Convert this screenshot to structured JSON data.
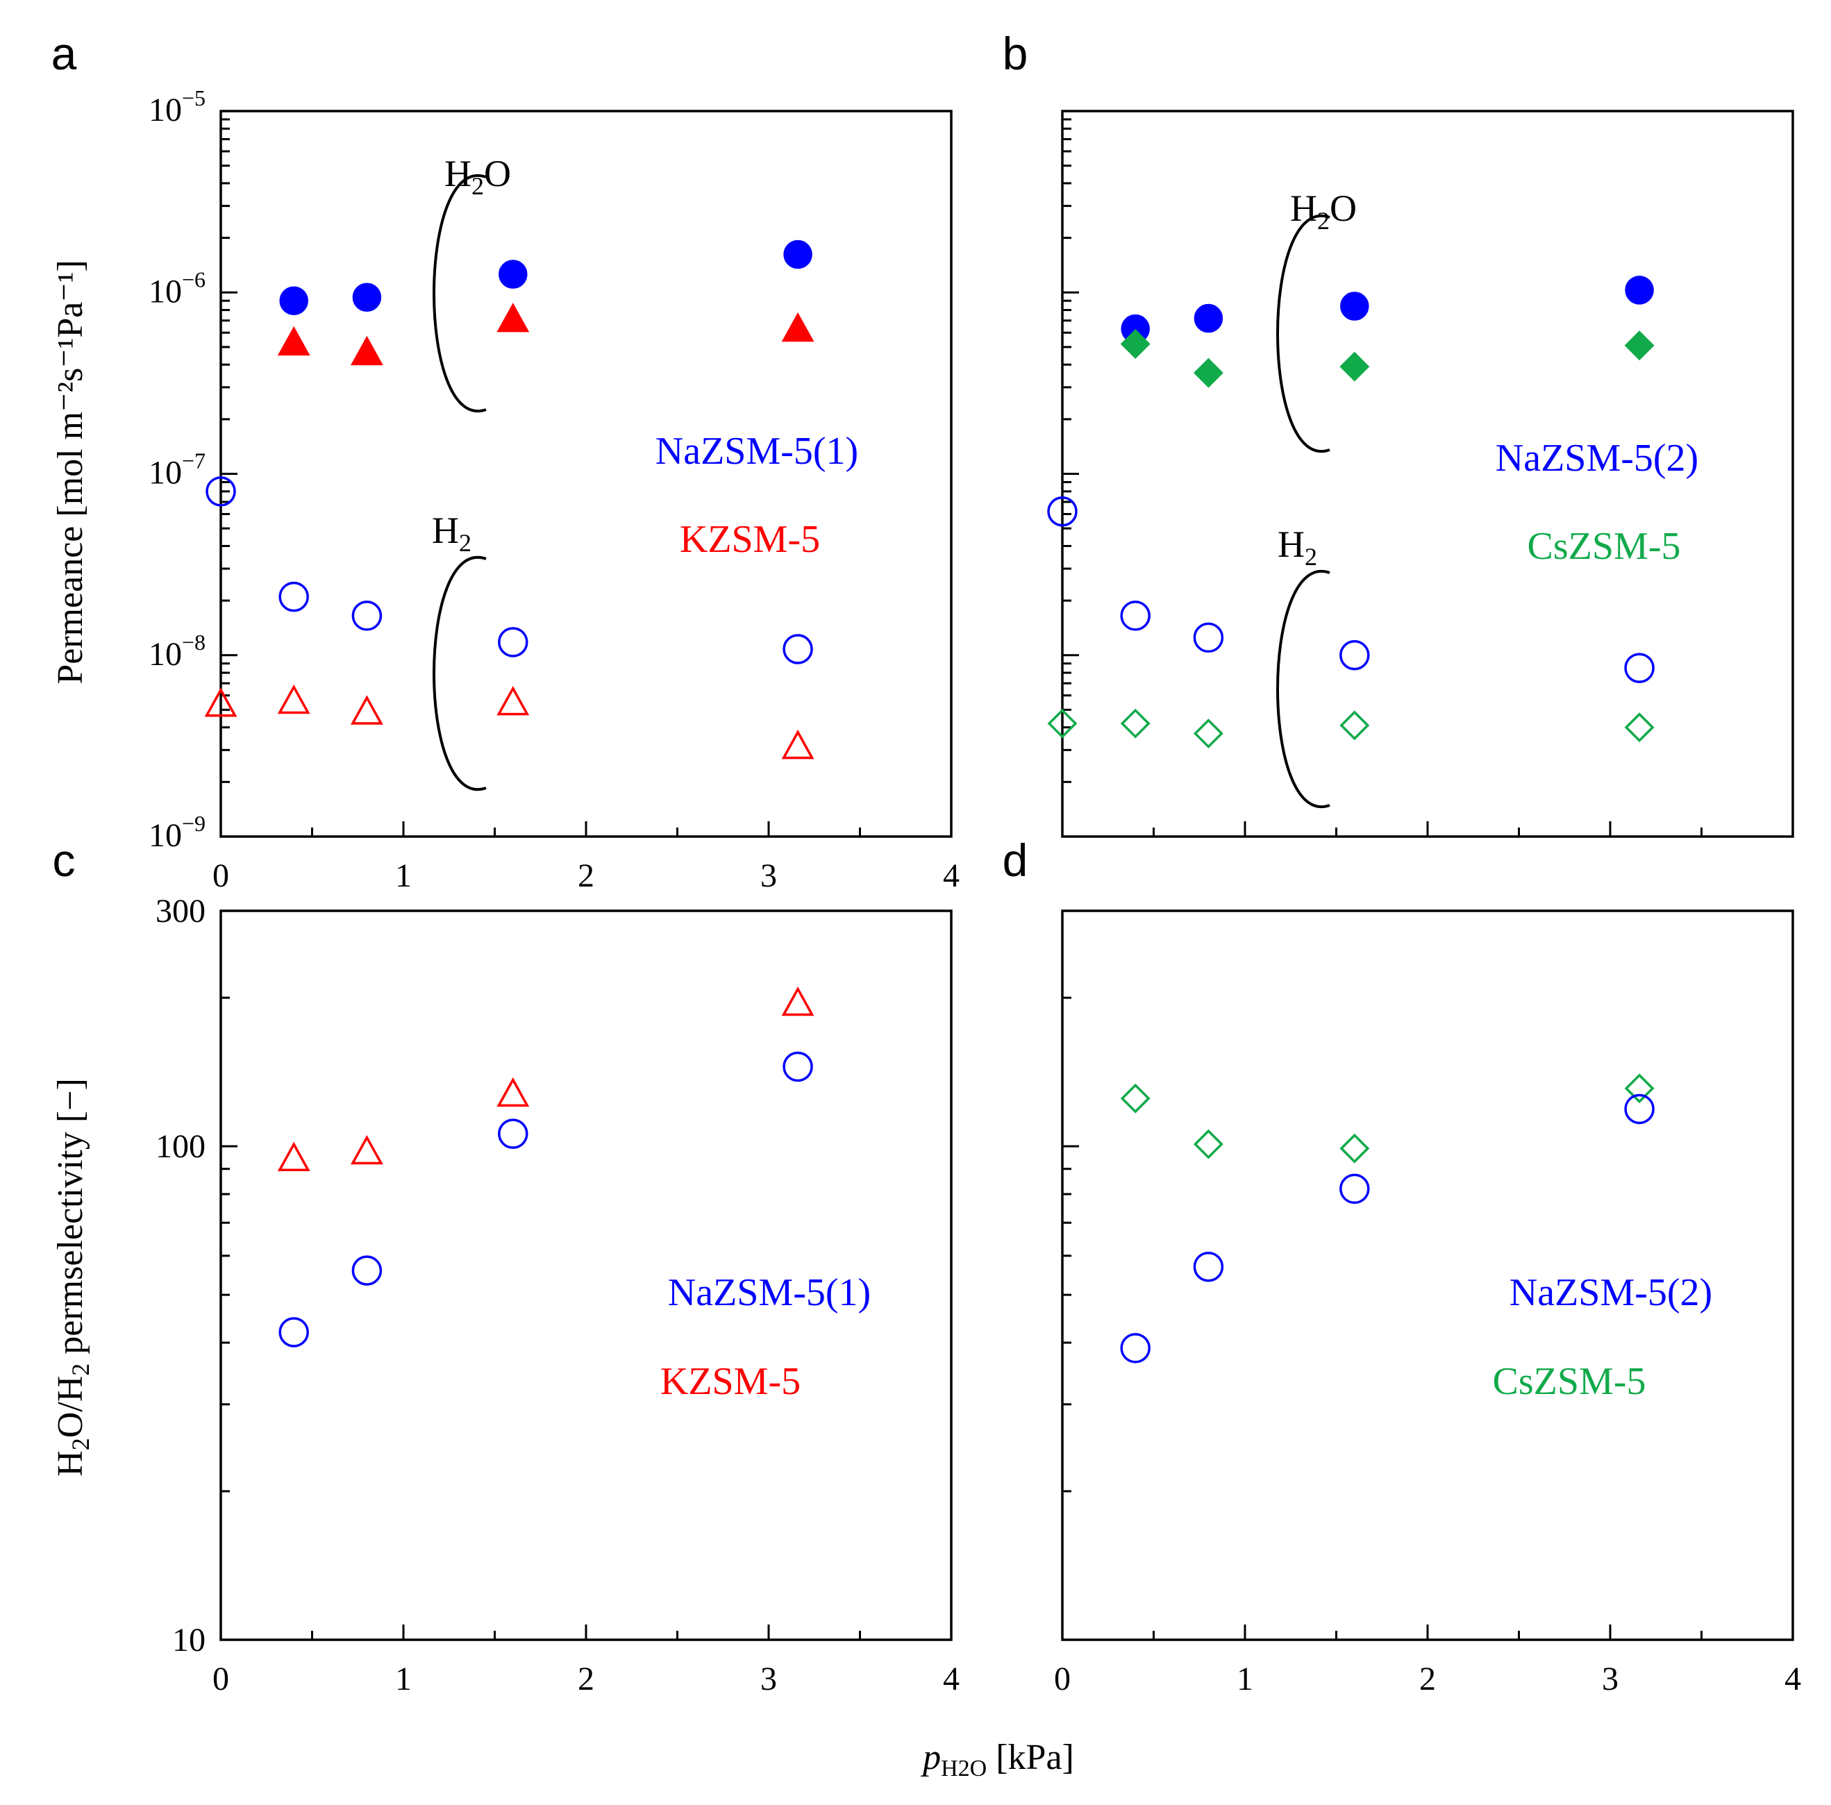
{
  "x_axis_label": {
    "italic": "p",
    "subscript": "H2O",
    "rest": " [kPa]"
  },
  "y_axis_label_top": "Permeance [mol m⁻²s⁻¹Pa⁻¹]",
  "y_axis_label_bottom": {
    "pre": "H",
    "sub1": "2",
    "mid": "O/H",
    "sub2": "2",
    "post": " permselectivity [−]"
  },
  "colors": {
    "na": "#0000ff",
    "k": "#ff0000",
    "cs": "#11aa4a",
    "axis": "#000000"
  },
  "chart_data": [
    {
      "panel": "a",
      "type": "scatter",
      "yscale": "log",
      "xlim": [
        0,
        4
      ],
      "ylim": [
        1e-09,
        1e-05
      ],
      "x_ticks": [
        "0",
        "1",
        "2",
        "3",
        "4"
      ],
      "y_ticks": [
        "10^-9",
        "10^-8",
        "10^-7",
        "10^-6",
        "10^-5"
      ],
      "group_labels": {
        "h2o": {
          "main": "H",
          "sub": "2",
          "tail": "O"
        },
        "h2": {
          "main": "H",
          "sub": "2",
          "tail": ""
        }
      },
      "legend": [
        {
          "name": "NaZSM-5(1)",
          "color": "#0000ff"
        },
        {
          "name": "KZSM-5",
          "color": "#ff0000"
        }
      ],
      "series": [
        {
          "name": "NaZSM-5(1) H2O",
          "marker": "circle",
          "filled": true,
          "color": "#0000ff",
          "x": [
            0.4,
            0.8,
            1.6,
            3.16
          ],
          "y": [
            9e-07,
            9.4e-07,
            1.26e-06,
            1.62e-06
          ]
        },
        {
          "name": "KZSM-5 H2O",
          "marker": "triangle",
          "filled": true,
          "color": "#ff0000",
          "x": [
            0.4,
            0.8,
            1.6,
            3.16
          ],
          "y": [
            5.2e-07,
            4.6e-07,
            7e-07,
            6.2e-07
          ]
        },
        {
          "name": "NaZSM-5(1) H2",
          "marker": "circle",
          "filled": false,
          "color": "#0000ff",
          "x": [
            0,
            0.4,
            0.8,
            1.6,
            3.16
          ],
          "y": [
            8e-08,
            2.1e-08,
            1.65e-08,
            1.18e-08,
            1.08e-08
          ]
        },
        {
          "name": "KZSM-5 H2",
          "marker": "triangle",
          "filled": false,
          "color": "#ff0000",
          "x": [
            0,
            0.4,
            0.8,
            1.6,
            3.16
          ],
          "y": [
            5.3e-09,
            5.5e-09,
            4.8e-09,
            5.4e-09,
            3.1e-09
          ]
        }
      ]
    },
    {
      "panel": "b",
      "type": "scatter",
      "yscale": "log",
      "xlim": [
        0,
        4
      ],
      "ylim": [
        1e-09,
        1e-05
      ],
      "x_ticks": [],
      "y_ticks": [],
      "group_labels": {
        "h2o": {
          "main": "H",
          "sub": "2",
          "tail": "O"
        },
        "h2": {
          "main": "H",
          "sub": "2",
          "tail": ""
        }
      },
      "legend": [
        {
          "name": "NaZSM-5(2)",
          "color": "#0000ff"
        },
        {
          "name": "CsZSM-5",
          "color": "#11aa4a"
        }
      ],
      "series": [
        {
          "name": "NaZSM-5(2) H2O",
          "marker": "circle",
          "filled": true,
          "color": "#0000ff",
          "x": [
            0.4,
            0.8,
            1.6,
            3.16
          ],
          "y": [
            6.3e-07,
            7.2e-07,
            8.4e-07,
            1.03e-06
          ]
        },
        {
          "name": "CsZSM-5 H2O",
          "marker": "diamond",
          "filled": true,
          "color": "#11aa4a",
          "x": [
            0.4,
            0.8,
            1.6,
            3.16
          ],
          "y": [
            5.2e-07,
            3.6e-07,
            3.9e-07,
            5.1e-07
          ]
        },
        {
          "name": "NaZSM-5(2) H2",
          "marker": "circle",
          "filled": false,
          "color": "#0000ff",
          "x": [
            0,
            0.4,
            0.8,
            1.6,
            3.16
          ],
          "y": [
            6.2e-08,
            1.65e-08,
            1.25e-08,
            1e-08,
            8.5e-09
          ]
        },
        {
          "name": "CsZSM-5 H2",
          "marker": "diamond",
          "filled": false,
          "color": "#11aa4a",
          "x": [
            0,
            0.4,
            0.8,
            1.6,
            3.16
          ],
          "y": [
            4.2e-09,
            4.2e-09,
            3.7e-09,
            4.1e-09,
            4e-09
          ]
        }
      ]
    },
    {
      "panel": "c",
      "type": "scatter",
      "yscale": "log",
      "xlim": [
        0,
        4
      ],
      "ylim": [
        10,
        300
      ],
      "x_ticks": [
        "0",
        "1",
        "2",
        "3",
        "4"
      ],
      "y_ticks": [
        "10",
        "100",
        "300"
      ],
      "legend": [
        {
          "name": "NaZSM-5(1)",
          "color": "#0000ff"
        },
        {
          "name": "KZSM-5",
          "color": "#ff0000"
        }
      ],
      "series": [
        {
          "name": "KZSM-5",
          "marker": "triangle",
          "filled": false,
          "color": "#ff0000",
          "x": [
            0.4,
            0.8,
            1.6,
            3.16
          ],
          "y": [
            94,
            97,
            127,
            194
          ]
        },
        {
          "name": "NaZSM-5(1)",
          "marker": "circle",
          "filled": false,
          "color": "#0000ff",
          "x": [
            0.4,
            0.8,
            1.6,
            3.16
          ],
          "y": [
            42,
            56,
            106,
            145
          ]
        }
      ]
    },
    {
      "panel": "d",
      "type": "scatter",
      "yscale": "log",
      "xlim": [
        0,
        4
      ],
      "ylim": [
        10,
        300
      ],
      "x_ticks": [
        "0",
        "1",
        "2",
        "3",
        "4"
      ],
      "y_ticks": [],
      "legend": [
        {
          "name": "NaZSM-5(2)",
          "color": "#0000ff"
        },
        {
          "name": "CsZSM-5",
          "color": "#11aa4a"
        }
      ],
      "series": [
        {
          "name": "CsZSM-5",
          "marker": "diamond",
          "filled": false,
          "color": "#11aa4a",
          "x": [
            0.4,
            0.8,
            1.6,
            3.16
          ],
          "y": [
            125,
            101,
            99,
            131
          ]
        },
        {
          "name": "NaZSM-5(2)",
          "marker": "circle",
          "filled": false,
          "color": "#0000ff",
          "x": [
            0.4,
            0.8,
            1.6,
            3.16
          ],
          "y": [
            39,
            57,
            82,
            119
          ]
        }
      ]
    }
  ]
}
